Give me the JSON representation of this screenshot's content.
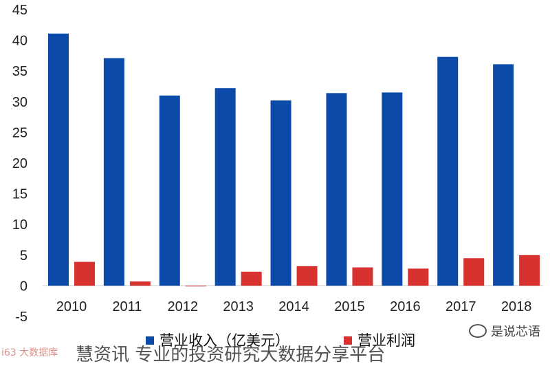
{
  "chart_data": {
    "type": "bar",
    "categories": [
      "2010",
      "2011",
      "2012",
      "2013",
      "2014",
      "2015",
      "2016",
      "2017",
      "2018"
    ],
    "series": [
      {
        "name": "营业收入（亿美元）",
        "values": [
          41.1,
          37.1,
          31.0,
          32.2,
          30.2,
          31.4,
          31.5,
          37.3,
          36.1
        ],
        "color": "#0b4aa8"
      },
      {
        "name": "营业利润",
        "values": [
          3.9,
          0.7,
          -0.1,
          2.3,
          3.2,
          3.0,
          2.8,
          4.5,
          5.0
        ],
        "color": "#d7322f"
      }
    ],
    "yticks": [
      "45",
      "40",
      "35",
      "30",
      "25",
      "20",
      "15",
      "10",
      "5",
      "0",
      "-5"
    ],
    "ylim": [
      -5,
      45
    ],
    "legend_position": "bottom",
    "grid": false
  },
  "watermarks": {
    "left": "i63 大数据库",
    "brand": "慧资讯 专业的投资研究大数据分享平台",
    "right": "是说芯语"
  }
}
